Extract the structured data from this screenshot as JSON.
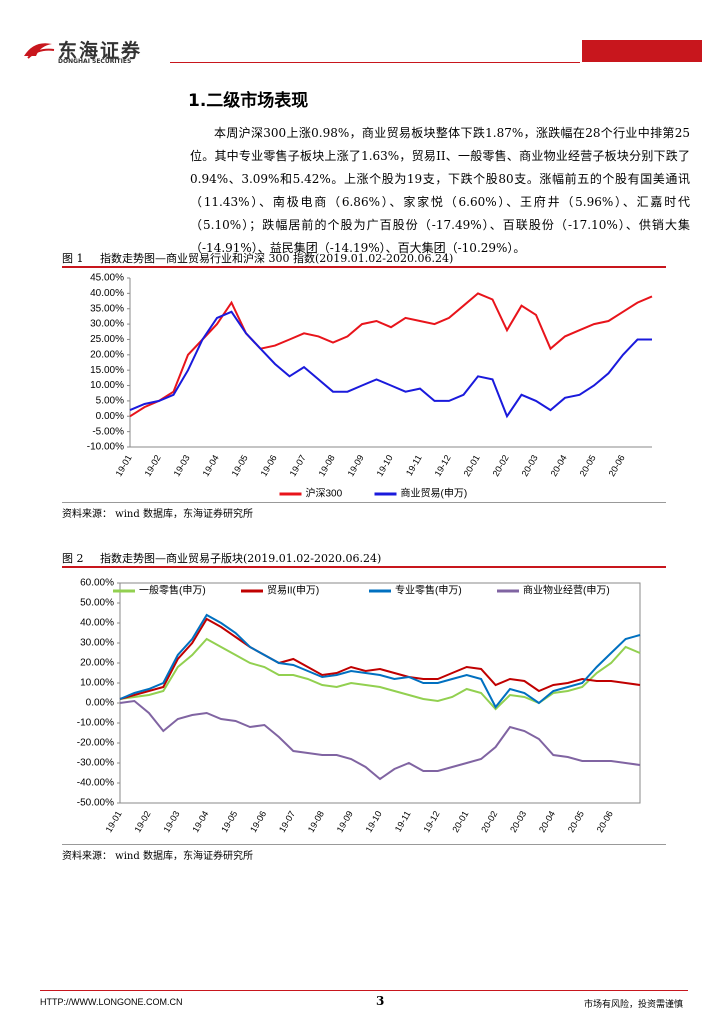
{
  "header": {
    "logo_cn": "东海证券",
    "logo_en": "DONGHAI SECURITIES"
  },
  "section_title": "1.二级市场表现",
  "paragraph": "本周沪深300上涨0.98%，商业贸易板块整体下跌1.87%，涨跌幅在28个行业中排第25位。其中专业零售子板块上涨了1.63%，贸易II、一般零售、商业物业经营子板块分别下跌了0.94%、3.09%和5.42%。上涨个股为19支，下跌个股80支。涨幅前五的个股有国美通讯（11.43%）、南极电商（6.86%）、家家悦（6.60%）、王府井（5.96%）、汇嘉时代（5.10%）；跌幅居前的个股为广百股份（-17.49%）、百联股份（-17.10%）、供销大集（-14.91%）、益民集团（-14.19%）、百大集团（-10.29%）。",
  "chart_data": [
    {
      "type": "line",
      "figure_label": "图 1",
      "title": "指数走势图—商业贸易行业和沪深 300 指数(2019.01.02-2020.06.24)",
      "source": "资料来源： wind 数据库，东海证券研究所",
      "categories": [
        "19-01",
        null,
        "19-02",
        null,
        "19-03",
        null,
        "19-04",
        null,
        "19-05",
        null,
        "19-06",
        null,
        "19-07",
        null,
        "19-08",
        null,
        "19-09",
        null,
        "19-10",
        null,
        "19-11",
        null,
        "19-12",
        null,
        "20-01",
        null,
        "20-02",
        null,
        "20-03",
        null,
        "20-04",
        null,
        "20-05",
        null,
        "20-06",
        null,
        null
      ],
      "series": [
        {
          "name": "沪深300",
          "color": "#e8141b",
          "values": [
            0,
            3,
            5,
            8,
            20,
            25,
            30,
            37,
            27,
            22,
            23,
            25,
            27,
            26,
            24,
            26,
            30,
            31,
            29,
            32,
            31,
            30,
            32,
            36,
            40,
            38,
            28,
            36,
            33,
            22,
            26,
            28,
            30,
            31,
            34,
            37,
            39
          ]
        },
        {
          "name": "商业贸易(申万)",
          "color": "#1a1adc",
          "values": [
            2,
            4,
            5,
            7,
            15,
            25,
            32,
            34,
            27,
            22,
            17,
            13,
            16,
            12,
            8,
            8,
            10,
            12,
            10,
            8,
            9,
            5,
            5,
            7,
            13,
            12,
            0,
            7,
            5,
            2,
            6,
            7,
            10,
            14,
            20,
            25,
            25
          ]
        }
      ],
      "ylim": [
        -10,
        45
      ],
      "yticks": [
        {
          "value": -10,
          "label": "-10.00%"
        },
        {
          "value": -5,
          "label": "-5.00%"
        },
        {
          "value": 0,
          "label": "0.00%"
        },
        {
          "value": 5,
          "label": "5.00%"
        },
        {
          "value": 10,
          "label": "10.00%"
        },
        {
          "value": 15,
          "label": "15.00%"
        },
        {
          "value": 20,
          "label": "20.00%"
        },
        {
          "value": 25,
          "label": "25.00%"
        },
        {
          "value": 30,
          "label": "30.00%"
        },
        {
          "value": 35,
          "label": "35.00%"
        },
        {
          "value": 40,
          "label": "40.00%"
        },
        {
          "value": 45,
          "label": "45.00%"
        }
      ],
      "legend": "bottom",
      "grid": false
    },
    {
      "type": "line",
      "figure_label": "图 2",
      "title": "指数走势图—商业贸易子版块(2019.01.02-2020.06.24)",
      "source": "资料来源： wind 数据库，东海证券研究所",
      "categories": [
        "19-01",
        null,
        "19-02",
        null,
        "19-03",
        null,
        "19-04",
        null,
        "19-05",
        null,
        "19-06",
        null,
        "19-07",
        null,
        "19-08",
        null,
        "19-09",
        null,
        "19-10",
        null,
        "19-11",
        null,
        "19-12",
        null,
        "20-01",
        null,
        "20-02",
        null,
        "20-03",
        null,
        "20-04",
        null,
        "20-05",
        null,
        "20-06",
        null,
        null
      ],
      "series": [
        {
          "name": "一般零售(申万)",
          "color": "#92d050",
          "values": [
            2,
            3,
            4,
            6,
            18,
            24,
            32,
            28,
            24,
            20,
            18,
            14,
            14,
            12,
            9,
            8,
            10,
            9,
            8,
            6,
            4,
            2,
            1,
            3,
            7,
            5,
            -3,
            4,
            3,
            0,
            5,
            6,
            8,
            15,
            20,
            28,
            25
          ]
        },
        {
          "name": "贸易II(申万)",
          "color": "#c00000",
          "values": [
            2,
            4,
            6,
            8,
            22,
            30,
            42,
            38,
            33,
            28,
            24,
            20,
            22,
            18,
            14,
            15,
            18,
            16,
            17,
            15,
            13,
            12,
            12,
            15,
            18,
            17,
            9,
            12,
            11,
            6,
            9,
            10,
            12,
            11,
            11,
            10,
            9
          ]
        },
        {
          "name": "专业零售(申万)",
          "color": "#0070c0",
          "values": [
            2,
            5,
            7,
            10,
            24,
            32,
            44,
            40,
            35,
            28,
            24,
            20,
            19,
            16,
            13,
            14,
            16,
            15,
            14,
            12,
            13,
            10,
            10,
            12,
            14,
            12,
            -2,
            7,
            5,
            0,
            6,
            8,
            10,
            18,
            25,
            32,
            34
          ]
        },
        {
          "name": "商业物业经营(申万)",
          "color": "#8064a2",
          "values": [
            0,
            1,
            -5,
            -14,
            -8,
            -6,
            -5,
            -8,
            -9,
            -12,
            -11,
            -17,
            -24,
            -25,
            -26,
            -26,
            -28,
            -32,
            -38,
            -33,
            -30,
            -34,
            -34,
            -32,
            -30,
            -28,
            -22,
            -12,
            -14,
            -18,
            -26,
            -27,
            -29,
            -29,
            -29,
            -30,
            -31
          ]
        }
      ],
      "ylim": [
        -50,
        60
      ],
      "yticks": [
        {
          "value": -50,
          "label": "-50.00%"
        },
        {
          "value": -40,
          "label": "-40.00%"
        },
        {
          "value": -30,
          "label": "-30.00%"
        },
        {
          "value": -20,
          "label": "-20.00%"
        },
        {
          "value": -10,
          "label": "-10.00%"
        },
        {
          "value": 0,
          "label": "0.00%"
        },
        {
          "value": 10,
          "label": "10.00%"
        },
        {
          "value": 20,
          "label": "20.00%"
        },
        {
          "value": 30,
          "label": "30.00%"
        },
        {
          "value": 40,
          "label": "40.00%"
        },
        {
          "value": 50,
          "label": "50.00%"
        },
        {
          "value": 60,
          "label": "60.00%"
        }
      ],
      "legend": "top",
      "grid": false
    }
  ],
  "footer": {
    "url": "HTTP://WWW.LONGONE.COM.CN",
    "page": "3",
    "disclaimer": "市场有风险，投资需谨慎"
  }
}
